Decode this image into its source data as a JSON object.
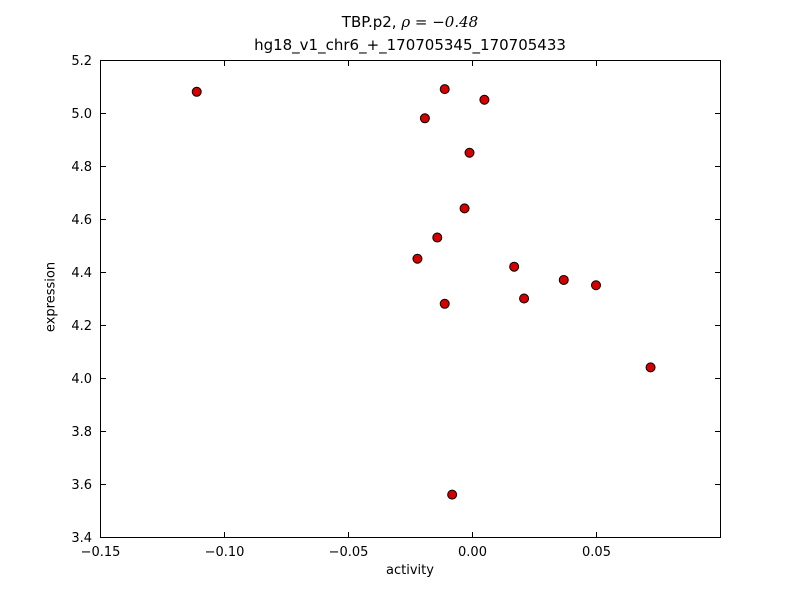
{
  "title": {
    "line1_prefix": "TBP.p2, ",
    "line1_math": "ρ = −0.48",
    "line2": "hg18_v1_chr6_+_170705345_170705433"
  },
  "chart_data": {
    "type": "scatter",
    "title": "TBP.p2, ρ = −0.48",
    "subtitle": "hg18_v1_chr6_+_170705345_170705433",
    "xlabel": "activity",
    "ylabel": "expression",
    "xlim": [
      -0.15,
      0.1
    ],
    "ylim": [
      3.4,
      5.2
    ],
    "xticks": [
      -0.15,
      -0.1,
      -0.05,
      0.0,
      0.05
    ],
    "xtick_labels": [
      "−0.15",
      "−0.10",
      "−0.05",
      "0.00",
      "0.05"
    ],
    "yticks": [
      3.4,
      3.6,
      3.8,
      4.0,
      4.2,
      4.4,
      4.6,
      4.8,
      5.0,
      5.2
    ],
    "ytick_labels": [
      "3.4",
      "3.6",
      "3.8",
      "4.0",
      "4.2",
      "4.4",
      "4.6",
      "4.8",
      "5.0",
      "5.2"
    ],
    "correlation_rho": -0.48,
    "grid": false,
    "legend": null,
    "marker": {
      "shape": "circle",
      "fill": "#d40000",
      "edge": "#000000",
      "radius": 4.5
    },
    "points": [
      [
        -0.111,
        5.08
      ],
      [
        -0.019,
        4.98
      ],
      [
        -0.011,
        5.09
      ],
      [
        0.005,
        5.05
      ],
      [
        -0.001,
        4.85
      ],
      [
        -0.003,
        4.64
      ],
      [
        -0.014,
        4.53
      ],
      [
        -0.022,
        4.45
      ],
      [
        0.017,
        4.42
      ],
      [
        0.037,
        4.37
      ],
      [
        0.05,
        4.35
      ],
      [
        0.021,
        4.3
      ],
      [
        -0.011,
        4.28
      ],
      [
        0.072,
        4.04
      ],
      [
        -0.008,
        3.56
      ]
    ]
  }
}
